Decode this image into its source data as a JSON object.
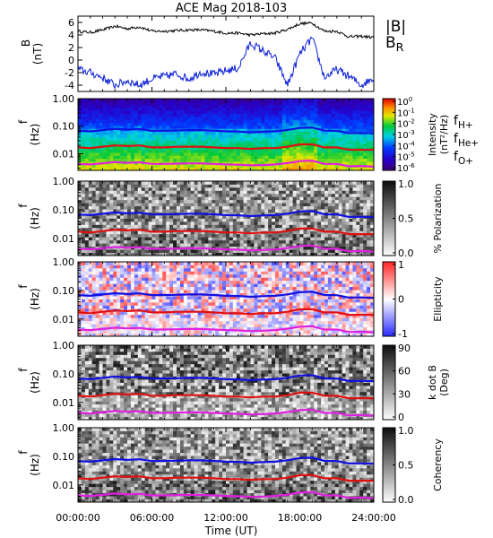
{
  "title": "ACE Mag 2018-103",
  "xlabel": "Time (UT)",
  "x_ticks": [
    "00:00:00",
    "06:00:00",
    "12:00:00",
    "18:00:00",
    "24:00:00"
  ],
  "colors": {
    "total_field": "#000000",
    "radial_field": "#0a1ed6",
    "f_H": "#1010e0",
    "f_He": "#e01010",
    "f_O": "#e020e0"
  },
  "chart_data": [
    {
      "type": "line",
      "panel": "B",
      "ylabel": "B",
      "yunit": "(nT)",
      "ylim": [
        -5,
        7
      ],
      "yticks": [
        "6",
        "4",
        "2",
        "0",
        "-2",
        "-4"
      ],
      "x_hours": [
        0,
        1,
        2,
        3,
        4,
        5,
        6,
        7,
        8,
        9,
        10,
        11,
        12,
        13,
        14,
        15,
        16,
        17,
        18,
        19,
        20,
        21,
        22,
        23,
        24
      ],
      "legend": [
        {
          "label": "|B|",
          "sub": "",
          "color": "#000000"
        },
        {
          "label": "B",
          "sub": "R",
          "color": "#0a1ed6"
        }
      ],
      "series": [
        {
          "name": "|B|",
          "values": [
            4.6,
            4.4,
            4.8,
            5.4,
            5.0,
            5.3,
            4.6,
            4.6,
            4.7,
            4.8,
            4.8,
            4.6,
            4.3,
            4.3,
            4.0,
            4.2,
            4.3,
            4.9,
            5.8,
            5.9,
            4.6,
            4.6,
            3.7,
            3.8,
            3.6
          ]
        },
        {
          "name": "B_R",
          "values": [
            -1.5,
            -2.0,
            -2.8,
            -4.0,
            -3.3,
            -4.0,
            -3.0,
            -2.6,
            -2.2,
            -3.0,
            -1.9,
            -2.3,
            -1.7,
            -1.3,
            2.7,
            1.5,
            0.3,
            -4.0,
            1.0,
            3.5,
            -2.8,
            -1.5,
            -2.6,
            -4.0,
            -2.8
          ]
        }
      ]
    },
    {
      "type": "heatmap",
      "panel": "power",
      "ylabel": "f",
      "yunit": "(Hz)",
      "ylim": [
        0.0025,
        1.0
      ],
      "yscale": "log",
      "yticks": [
        "1.00",
        "0.10",
        "0.01"
      ],
      "colorbar": {
        "label": "Intensity",
        "unit": "(nT²/Hz)",
        "range": [
          1e-06,
          1.0
        ],
        "ticks": [
          {
            "b": "10",
            "e": "0"
          },
          {
            "b": "10",
            "e": "-1"
          },
          {
            "b": "10",
            "e": "-2"
          },
          {
            "b": "10",
            "e": "-3"
          },
          {
            "b": "10",
            "e": "-4"
          },
          {
            "b": "10",
            "e": "-5"
          },
          {
            "b": "10",
            "e": "-6"
          }
        ]
      },
      "legend": [
        {
          "label": "f",
          "sub": "H+",
          "color": "#1010e0"
        },
        {
          "label": "f",
          "sub": "He+",
          "color": "#e01010"
        },
        {
          "label": "f",
          "sub": "O+",
          "color": "#e020e0"
        }
      ]
    },
    {
      "type": "heatmap",
      "panel": "polarization",
      "ylabel": "f",
      "yunit": "(Hz)",
      "ylim": [
        0.0025,
        1.0
      ],
      "yscale": "log",
      "yticks": [
        "1.00",
        "0.10",
        "0.01"
      ],
      "colorbar": {
        "label": "% Polarization",
        "unit": "",
        "range": [
          0.0,
          1.0
        ],
        "ticks": [
          "1.0",
          "0.5",
          "0.0"
        ]
      }
    },
    {
      "type": "heatmap",
      "panel": "ellipticity",
      "ylabel": "f",
      "yunit": "(Hz)",
      "ylim": [
        0.0025,
        1.0
      ],
      "yscale": "log",
      "yticks": [
        "1.00",
        "0.10",
        "0.01"
      ],
      "colorbar": {
        "label": "Ellipticity",
        "unit": "",
        "range": [
          -1,
          1
        ],
        "ticks": [
          "1",
          "0",
          "-1"
        ]
      }
    },
    {
      "type": "heatmap",
      "panel": "kdotb",
      "ylabel": "f",
      "yunit": "(Hz)",
      "ylim": [
        0.0025,
        1.0
      ],
      "yscale": "log",
      "yticks": [
        "1.00",
        "0.10",
        "0.01"
      ],
      "colorbar": {
        "label": "k dot B",
        "unit": "(Deg)",
        "range": [
          0,
          90
        ],
        "ticks": [
          "90",
          "60",
          "30",
          "0"
        ]
      }
    },
    {
      "type": "heatmap",
      "panel": "coherency",
      "ylabel": "f",
      "yunit": "(Hz)",
      "ylim": [
        0.0025,
        1.0
      ],
      "yscale": "log",
      "yticks": [
        "1.00",
        "0.10",
        "0.01"
      ],
      "colorbar": {
        "label": "Coherency",
        "unit": "",
        "range": [
          0.0,
          1.0
        ],
        "ticks": [
          "1.0",
          "0.5",
          "0.0"
        ]
      }
    }
  ],
  "gyrofrequencies": {
    "x_hours": [
      0,
      1,
      2,
      3,
      4,
      5,
      6,
      7,
      8,
      9,
      10,
      11,
      12,
      13,
      14,
      15,
      16,
      17,
      18,
      19,
      20,
      21,
      22,
      23,
      24
    ],
    "f_H": [
      0.068,
      0.065,
      0.072,
      0.08,
      0.075,
      0.079,
      0.068,
      0.069,
      0.07,
      0.072,
      0.072,
      0.069,
      0.065,
      0.064,
      0.06,
      0.063,
      0.065,
      0.073,
      0.087,
      0.09,
      0.069,
      0.068,
      0.056,
      0.057,
      0.055
    ],
    "f_He": [
      0.017,
      0.016,
      0.018,
      0.02,
      0.019,
      0.02,
      0.017,
      0.017,
      0.018,
      0.018,
      0.018,
      0.017,
      0.016,
      0.016,
      0.015,
      0.016,
      0.016,
      0.018,
      0.022,
      0.022,
      0.017,
      0.017,
      0.014,
      0.014,
      0.014
    ],
    "f_O": [
      0.0043,
      0.0041,
      0.0045,
      0.005,
      0.0047,
      0.0049,
      0.0043,
      0.0043,
      0.0044,
      0.0045,
      0.0045,
      0.0043,
      0.0041,
      0.004,
      0.0038,
      0.0039,
      0.0041,
      0.0046,
      0.0054,
      0.0056,
      0.0043,
      0.0043,
      0.0035,
      0.0036,
      0.0034
    ]
  }
}
